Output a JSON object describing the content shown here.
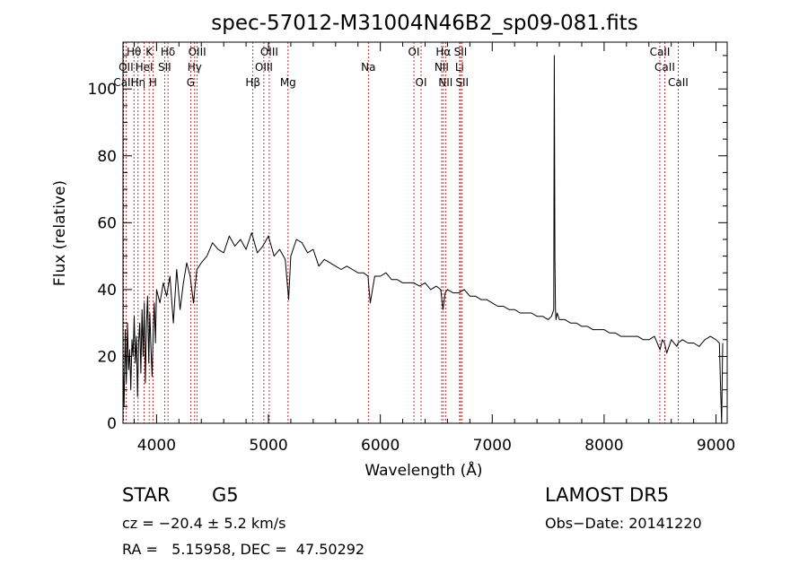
{
  "chart_data": {
    "type": "line",
    "title": "spec-57012-M31004N46B2_sp09-081.fits",
    "xlabel": "Wavelength (Å)",
    "ylabel": "Flux (relative)",
    "xlim": [
      3700,
      9100
    ],
    "ylim": [
      0,
      114
    ],
    "x_ticks": [
      4000,
      5000,
      6000,
      7000,
      8000,
      9000
    ],
    "y_ticks": [
      0,
      20,
      40,
      60,
      80,
      100
    ],
    "grid": false,
    "line_color": "#000000",
    "marker_color": "#c00000",
    "spectral_lines": [
      {
        "label": "Hθ",
        "wavelength": 3798,
        "row": 1
      },
      {
        "label": "OII",
        "wavelength": 3727,
        "row": 2
      },
      {
        "label": "CaII",
        "wavelength": 3706,
        "row": 3
      },
      {
        "label": "Hη",
        "wavelength": 3835,
        "row": 3
      },
      {
        "label": "K",
        "wavelength": 3934,
        "row": 1
      },
      {
        "label": "HeI",
        "wavelength": 3889,
        "row": 2
      },
      {
        "label": "H",
        "wavelength": 3968,
        "row": 3
      },
      {
        "label": "Hδ",
        "wavelength": 4102,
        "row": 1
      },
      {
        "label": "SII",
        "wavelength": 4072,
        "row": 2
      },
      {
        "label": "OIII",
        "wavelength": 4363,
        "row": 1
      },
      {
        "label": "Hγ",
        "wavelength": 4340,
        "row": 2
      },
      {
        "label": "G",
        "wavelength": 4305,
        "row": 3
      },
      {
        "label": "OIII",
        "wavelength": 5007,
        "row": 1
      },
      {
        "label": "OIII",
        "wavelength": 4959,
        "row": 2
      },
      {
        "label": "Hβ",
        "wavelength": 4861,
        "row": 3
      },
      {
        "label": "Mg",
        "wavelength": 5175,
        "row": 3
      },
      {
        "label": "Na",
        "wavelength": 5893,
        "row": 2
      },
      {
        "label": "OI",
        "wavelength": 6300,
        "row": 1
      },
      {
        "label": "OI",
        "wavelength": 6364,
        "row": 3
      },
      {
        "label": "Hα",
        "wavelength": 6563,
        "row": 1
      },
      {
        "label": "NII",
        "wavelength": 6548,
        "row": 2
      },
      {
        "label": "NII",
        "wavelength": 6583,
        "row": 3
      },
      {
        "label": "SII",
        "wavelength": 6717,
        "row": 1
      },
      {
        "label": "Li",
        "wavelength": 6708,
        "row": 2
      },
      {
        "label": "SII",
        "wavelength": 6731,
        "row": 3
      },
      {
        "label": "CaII",
        "wavelength": 8498,
        "row": 1
      },
      {
        "label": "CaII",
        "wavelength": 8542,
        "row": 2
      },
      {
        "label": "CaII",
        "wavelength": 8662,
        "row": 3
      }
    ],
    "series": [
      {
        "x": [
          3700,
          3710,
          3720,
          3730,
          3740,
          3750,
          3760,
          3770,
          3780,
          3790,
          3800,
          3810,
          3820,
          3830,
          3840,
          3850,
          3860,
          3870,
          3880,
          3890,
          3900,
          3910,
          3920,
          3930,
          3940,
          3950,
          3960,
          3970,
          3980,
          3990,
          4000,
          4030,
          4060,
          4090,
          4120,
          4150,
          4180,
          4210,
          4240,
          4270,
          4300,
          4330,
          4360,
          4400,
          4450,
          4500,
          4550,
          4600,
          4650,
          4700,
          4750,
          4800,
          4850,
          4900,
          4950,
          5000,
          5050,
          5100,
          5150,
          5180,
          5200,
          5250,
          5300,
          5350,
          5400,
          5450,
          5500,
          5550,
          5600,
          5650,
          5700,
          5750,
          5800,
          5850,
          5890,
          5910,
          5950,
          6000,
          6050,
          6100,
          6150,
          6200,
          6250,
          6300,
          6350,
          6400,
          6450,
          6500,
          6540,
          6560,
          6580,
          6600,
          6650,
          6700,
          6750,
          6800,
          6850,
          6900,
          6950,
          7000,
          7050,
          7100,
          7150,
          7200,
          7250,
          7300,
          7350,
          7400,
          7450,
          7500,
          7530,
          7550,
          7555,
          7560,
          7565,
          7570,
          7580,
          7600,
          7650,
          7700,
          7750,
          7800,
          7850,
          7900,
          7950,
          8000,
          8050,
          8100,
          8150,
          8200,
          8250,
          8300,
          8350,
          8400,
          8450,
          8500,
          8520,
          8540,
          8560,
          8600,
          8650,
          8660,
          8700,
          8750,
          8800,
          8850,
          8900,
          8950,
          9000,
          9030,
          9040,
          9050,
          9060
        ],
        "y": [
          18,
          5,
          28,
          12,
          30,
          16,
          22,
          10,
          25,
          20,
          32,
          18,
          26,
          8,
          24,
          30,
          15,
          34,
          20,
          36,
          12,
          30,
          38,
          18,
          33,
          22,
          14,
          28,
          36,
          24,
          40,
          36,
          42,
          38,
          44,
          30,
          46,
          34,
          42,
          48,
          44,
          36,
          46,
          48,
          50,
          54,
          52,
          51,
          56,
          53,
          55,
          52,
          57,
          51,
          53,
          56,
          50,
          52,
          49,
          37,
          50,
          55,
          54,
          51,
          52,
          47,
          49,
          48,
          47,
          46,
          47,
          46,
          45,
          45,
          44,
          36,
          44,
          44,
          45,
          43,
          43,
          42,
          42,
          42,
          41,
          42,
          40,
          41,
          40,
          34,
          39,
          40,
          39,
          39,
          40,
          38,
          38,
          37,
          37,
          36,
          35,
          35,
          34,
          34,
          33,
          33,
          33,
          32,
          32,
          31,
          32,
          34,
          110,
          50,
          34,
          31,
          33,
          31,
          31,
          30,
          30,
          29,
          29,
          28,
          28,
          28,
          27,
          27,
          26,
          26,
          26,
          26,
          25,
          25,
          26,
          22,
          25,
          24,
          21,
          25,
          23,
          24,
          25,
          24,
          24,
          23,
          25,
          26,
          25,
          24,
          12,
          0,
          24
        ]
      }
    ]
  },
  "info": {
    "class_label": "STAR",
    "subclass": "G5",
    "cz": "cz = −20.4 ± 5.2 km/s",
    "coords": "RA =   5.15958, DEC =  47.50292",
    "survey": "LAMOST DR5",
    "obs_date": "Obs−Date: 20141220"
  }
}
